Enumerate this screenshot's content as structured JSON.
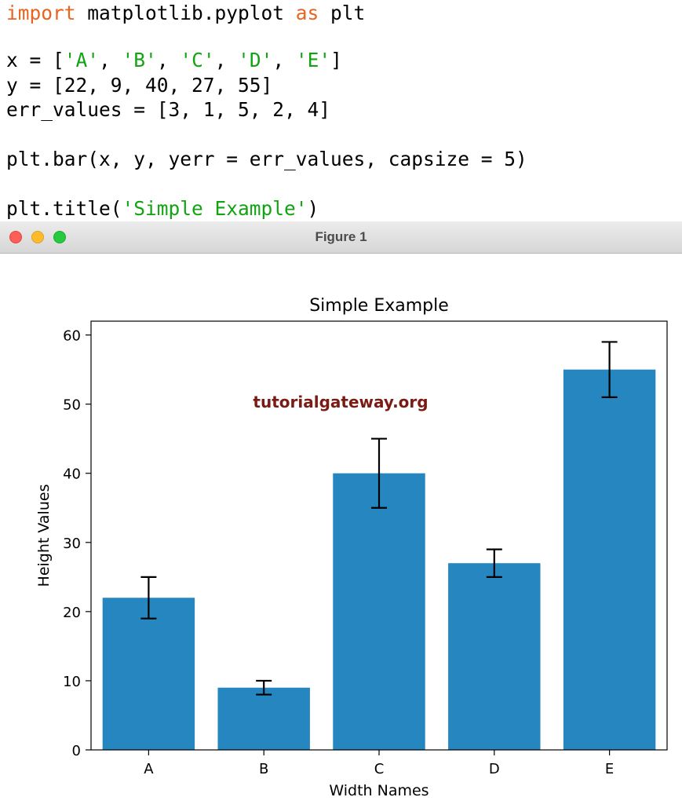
{
  "code": {
    "lines": [
      [
        {
          "t": "import",
          "c": "kw"
        },
        {
          "t": " matplotlib.pyplot ",
          "c": ""
        },
        {
          "t": "as",
          "c": "kw"
        },
        {
          "t": " plt",
          "c": ""
        }
      ],
      [],
      [
        {
          "t": "x = [",
          "c": ""
        },
        {
          "t": "'A'",
          "c": "str"
        },
        {
          "t": ", ",
          "c": ""
        },
        {
          "t": "'B'",
          "c": "str"
        },
        {
          "t": ", ",
          "c": ""
        },
        {
          "t": "'C'",
          "c": "str"
        },
        {
          "t": ", ",
          "c": ""
        },
        {
          "t": "'D'",
          "c": "str"
        },
        {
          "t": ", ",
          "c": ""
        },
        {
          "t": "'E'",
          "c": "str"
        },
        {
          "t": "]",
          "c": ""
        }
      ],
      [
        {
          "t": "y = [22, 9, 40, 27, 55]",
          "c": ""
        }
      ],
      [
        {
          "t": "err_values = [3, 1, 5, 2, 4]",
          "c": ""
        }
      ],
      [],
      [
        {
          "t": "plt.bar(x, y, yerr = err_values, capsize = 5)",
          "c": ""
        }
      ],
      [],
      [
        {
          "t": "plt.title(",
          "c": ""
        },
        {
          "t": "'Simple Example'",
          "c": "str"
        },
        {
          "t": ")",
          "c": ""
        }
      ]
    ]
  },
  "window": {
    "title": "Figure 1"
  },
  "watermark": "tutorialgateway.org",
  "colors": {
    "bar": "#2687c0",
    "keyword": "#e8641f",
    "string": "#12a312",
    "watermark": "#7b1c14"
  },
  "chart_data": {
    "type": "bar",
    "title": "Simple Example",
    "xlabel": "Width Names",
    "ylabel": "Height Values",
    "categories": [
      "A",
      "B",
      "C",
      "D",
      "E"
    ],
    "values": [
      22,
      9,
      40,
      27,
      55
    ],
    "errors": [
      3,
      1,
      5,
      2,
      4
    ],
    "ylim": [
      0,
      62
    ],
    "yticks": [
      0,
      10,
      20,
      30,
      40,
      50,
      60
    ],
    "grid": false,
    "legend": "none"
  }
}
